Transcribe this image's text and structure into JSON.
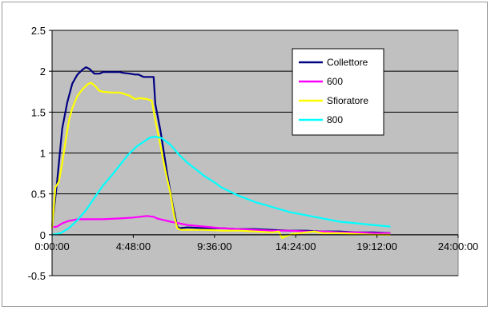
{
  "chart_data": {
    "type": "line",
    "title": "",
    "xlabel": "",
    "ylabel": "",
    "x_unit": "hours",
    "xlim": [
      0,
      24
    ],
    "ylim": [
      -0.5,
      2.5
    ],
    "x_tick_values": [
      0,
      4.8,
      9.6,
      14.4,
      19.2,
      24
    ],
    "x_tick_labels": [
      "0:00:00",
      "4:48:00",
      "9:36:00",
      "14:24:00",
      "19:12:00",
      "24:00:00"
    ],
    "y_tick_values": [
      -0.5,
      0,
      0.5,
      1,
      1.5,
      2,
      2.5
    ],
    "y_tick_labels": [
      "-0.5",
      "0",
      "0.5",
      "1",
      "1.5",
      "2",
      "2.5"
    ],
    "grid": "horizontal",
    "plot_background": "#c0c0c0",
    "legend_position": "top-right",
    "series": [
      {
        "name": "Collettore",
        "color": "#000080",
        "points": [
          [
            0,
            0.1
          ],
          [
            0.3,
            0.65
          ],
          [
            0.6,
            1.3
          ],
          [
            0.9,
            1.62
          ],
          [
            1.2,
            1.85
          ],
          [
            1.5,
            1.96
          ],
          [
            1.8,
            2.02
          ],
          [
            2.0,
            2.05
          ],
          [
            2.2,
            2.03
          ],
          [
            2.5,
            1.97
          ],
          [
            2.8,
            1.97
          ],
          [
            3.0,
            1.99
          ],
          [
            3.5,
            1.99
          ],
          [
            4.0,
            1.99
          ],
          [
            4.2,
            1.98
          ],
          [
            4.6,
            1.97
          ],
          [
            4.9,
            1.96
          ],
          [
            5.1,
            1.96
          ],
          [
            5.4,
            1.93
          ],
          [
            5.8,
            1.93
          ],
          [
            6.0,
            1.93
          ],
          [
            6.1,
            1.6
          ],
          [
            6.4,
            1.28
          ],
          [
            6.8,
            0.75
          ],
          [
            7.1,
            0.4
          ],
          [
            7.3,
            0.2
          ],
          [
            7.4,
            0.1
          ],
          [
            7.5,
            0.08
          ],
          [
            8,
            0.09
          ],
          [
            9,
            0.08
          ],
          [
            10,
            0.08
          ],
          [
            11,
            0.07
          ],
          [
            12,
            0.07
          ],
          [
            13,
            0.06
          ],
          [
            14,
            0.05
          ],
          [
            15,
            0.05
          ],
          [
            16,
            0.04
          ],
          [
            17,
            0.04
          ],
          [
            18,
            0.03
          ],
          [
            19,
            0.03
          ],
          [
            20,
            0.02
          ]
        ]
      },
      {
        "name": "600",
        "color": "#ff00ff",
        "points": [
          [
            0,
            0.09
          ],
          [
            0.3,
            0.1
          ],
          [
            0.6,
            0.14
          ],
          [
            1.0,
            0.17
          ],
          [
            1.5,
            0.19
          ],
          [
            2,
            0.19
          ],
          [
            3,
            0.19
          ],
          [
            4,
            0.2
          ],
          [
            4.8,
            0.21
          ],
          [
            5.2,
            0.22
          ],
          [
            5.6,
            0.23
          ],
          [
            6.0,
            0.22
          ],
          [
            6.2,
            0.2
          ],
          [
            6.6,
            0.18
          ],
          [
            7.0,
            0.16
          ],
          [
            7.5,
            0.14
          ],
          [
            8,
            0.12
          ],
          [
            8.5,
            0.11
          ],
          [
            9,
            0.1
          ],
          [
            10,
            0.08
          ],
          [
            11,
            0.07
          ],
          [
            12,
            0.06
          ],
          [
            13,
            0.05
          ],
          [
            14,
            0.05
          ],
          [
            15,
            0.04
          ],
          [
            16,
            0.04
          ],
          [
            17,
            0.03
          ],
          [
            18,
            0.03
          ],
          [
            19,
            0.02
          ],
          [
            20,
            0.02
          ]
        ]
      },
      {
        "name": "Sfioratore",
        "color": "#ffff00",
        "points": [
          [
            0,
            0.08
          ],
          [
            0.2,
            0.58
          ],
          [
            0.4,
            0.65
          ],
          [
            0.6,
            0.88
          ],
          [
            0.8,
            1.15
          ],
          [
            1.0,
            1.4
          ],
          [
            1.2,
            1.55
          ],
          [
            1.5,
            1.7
          ],
          [
            1.8,
            1.78
          ],
          [
            2.1,
            1.84
          ],
          [
            2.3,
            1.86
          ],
          [
            2.5,
            1.83
          ],
          [
            2.8,
            1.76
          ],
          [
            3.0,
            1.75
          ],
          [
            3.5,
            1.74
          ],
          [
            4.0,
            1.74
          ],
          [
            4.3,
            1.72
          ],
          [
            4.6,
            1.7
          ],
          [
            4.9,
            1.66
          ],
          [
            5.2,
            1.67
          ],
          [
            5.6,
            1.66
          ],
          [
            5.9,
            1.64
          ],
          [
            6.1,
            1.4
          ],
          [
            6.4,
            1.1
          ],
          [
            6.7,
            0.78
          ],
          [
            7.0,
            0.5
          ],
          [
            7.2,
            0.25
          ],
          [
            7.4,
            0.08
          ],
          [
            7.6,
            0.06
          ],
          [
            8,
            0.06
          ],
          [
            9,
            0.06
          ],
          [
            10,
            0.05
          ],
          [
            11,
            0.05
          ],
          [
            12,
            0.04
          ],
          [
            13,
            0.03
          ],
          [
            13.4,
            0.04
          ],
          [
            13.6,
            -0.04
          ],
          [
            13.8,
            -0.02
          ],
          [
            14.2,
            0.01
          ],
          [
            14.6,
            0.02
          ],
          [
            15,
            0.03
          ],
          [
            15.5,
            0.04
          ],
          [
            16,
            0.02
          ],
          [
            17,
            0.02
          ],
          [
            18,
            0.01
          ],
          [
            19,
            0.0
          ],
          [
            20,
            0.0
          ]
        ]
      },
      {
        "name": "800",
        "color": "#00ffff",
        "points": [
          [
            0,
            0.0
          ],
          [
            0.5,
            0.02
          ],
          [
            1.0,
            0.08
          ],
          [
            1.5,
            0.18
          ],
          [
            2.0,
            0.3
          ],
          [
            2.5,
            0.45
          ],
          [
            3.0,
            0.6
          ],
          [
            3.5,
            0.72
          ],
          [
            4.0,
            0.85
          ],
          [
            4.5,
            0.98
          ],
          [
            5.0,
            1.08
          ],
          [
            5.5,
            1.15
          ],
          [
            5.8,
            1.19
          ],
          [
            6.1,
            1.2
          ],
          [
            6.5,
            1.18
          ],
          [
            7.0,
            1.1
          ],
          [
            7.5,
            0.98
          ],
          [
            8.0,
            0.88
          ],
          [
            8.5,
            0.8
          ],
          [
            9.0,
            0.72
          ],
          [
            9.6,
            0.64
          ],
          [
            10,
            0.58
          ],
          [
            11,
            0.48
          ],
          [
            12,
            0.4
          ],
          [
            13,
            0.34
          ],
          [
            14,
            0.28
          ],
          [
            15,
            0.24
          ],
          [
            16,
            0.2
          ],
          [
            17,
            0.16
          ],
          [
            18,
            0.14
          ],
          [
            19,
            0.12
          ],
          [
            20,
            0.1
          ]
        ]
      }
    ]
  }
}
